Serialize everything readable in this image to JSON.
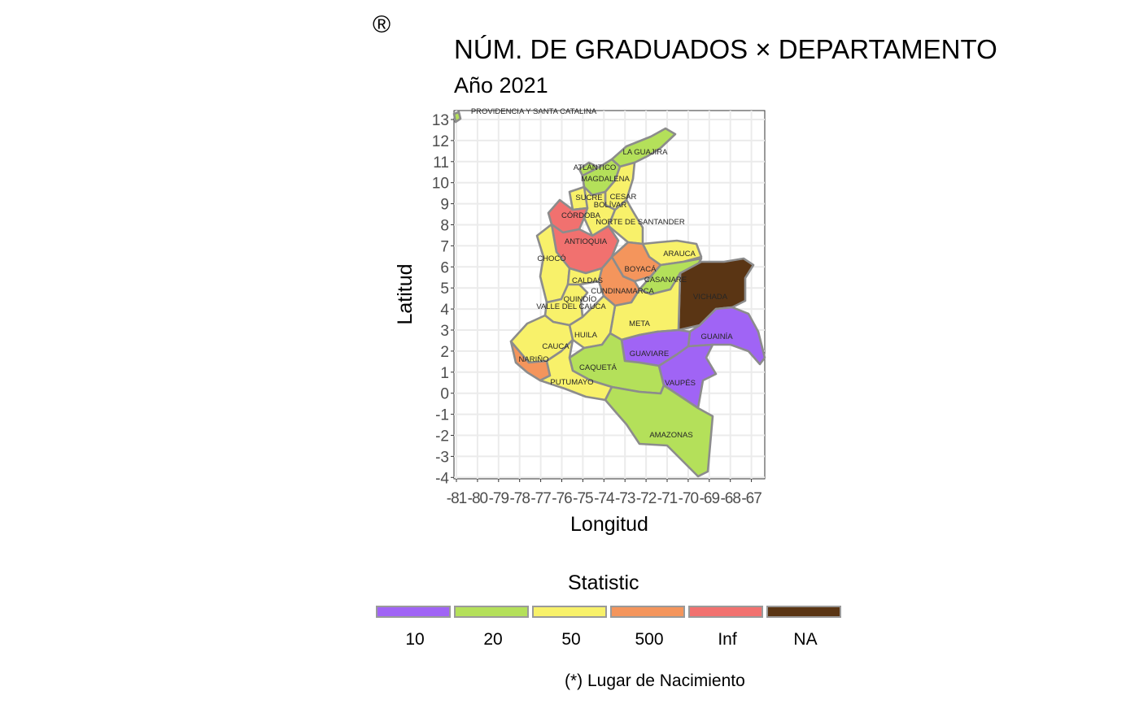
{
  "logo": "®",
  "title": "NÚM. DE GRADUADOS × DEPARTAMENTO",
  "subtitle": "Año 2021",
  "axes": {
    "x_title": "Longitud",
    "y_title": "Latitud",
    "x_ticks": [
      "-81",
      "-80",
      "-79",
      "-78",
      "-77",
      "-76",
      "-75",
      "-74",
      "-73",
      "-72",
      "-71",
      "-70",
      "-69",
      "-68",
      "-67"
    ],
    "y_ticks": [
      "13",
      "12",
      "11",
      "10",
      "9",
      "8",
      "7",
      "6",
      "5",
      "4",
      "3",
      "2",
      "1",
      "0",
      "-1",
      "-2",
      "-3",
      "-4"
    ]
  },
  "legend": {
    "title": "Statistic",
    "items": [
      {
        "label": "10",
        "color": "#a064f5"
      },
      {
        "label": "20",
        "color": "#b4e05a"
      },
      {
        "label": "50",
        "color": "#f8f16a"
      },
      {
        "label": "500",
        "color": "#f4955c"
      },
      {
        "label": "Inf",
        "color": "#f1716f"
      },
      {
        "label": "NA",
        "color": "#5a3514"
      }
    ]
  },
  "departments": [
    {
      "name": "PROVIDENCIA Y SANTA CATALINA",
      "category": "20"
    },
    {
      "name": "LA GUAJIRA",
      "category": "20"
    },
    {
      "name": "ATLÁNTICO",
      "category": "20"
    },
    {
      "name": "MAGDALENA",
      "category": "20"
    },
    {
      "name": "CESAR",
      "category": "50"
    },
    {
      "name": "SUCRE",
      "category": "50"
    },
    {
      "name": "BOLÍVAR",
      "category": "50"
    },
    {
      "name": "CÓRDOBA",
      "category": "Inf"
    },
    {
      "name": "NORTE DE SANTANDER",
      "category": "50"
    },
    {
      "name": "ANTIOQUIA",
      "category": "Inf"
    },
    {
      "name": "ARAUCA",
      "category": "50"
    },
    {
      "name": "CHOCÓ",
      "category": "50"
    },
    {
      "name": "BOYACÁ",
      "category": "500"
    },
    {
      "name": "CASANARE",
      "category": "20"
    },
    {
      "name": "CALDAS",
      "category": "50"
    },
    {
      "name": "CUNDINAMARCA",
      "category": "500"
    },
    {
      "name": "VICHADA",
      "category": "NA"
    },
    {
      "name": "QUINDÍO",
      "category": "50"
    },
    {
      "name": "VALLE DEL CAUCA",
      "category": "50"
    },
    {
      "name": "META",
      "category": "50"
    },
    {
      "name": "GUAINÍA",
      "category": "10"
    },
    {
      "name": "HUILA",
      "category": "50"
    },
    {
      "name": "CAUCA",
      "category": "50"
    },
    {
      "name": "GUAVIARE",
      "category": "10"
    },
    {
      "name": "NARIÑO",
      "category": "500"
    },
    {
      "name": "CAQUETÁ",
      "category": "20"
    },
    {
      "name": "VAUPÉS",
      "category": "10"
    },
    {
      "name": "PUTUMAYO",
      "category": "50"
    },
    {
      "name": "AMAZONAS",
      "category": "20"
    }
  ],
  "caption": "(*) Lugar de Nacimiento"
}
